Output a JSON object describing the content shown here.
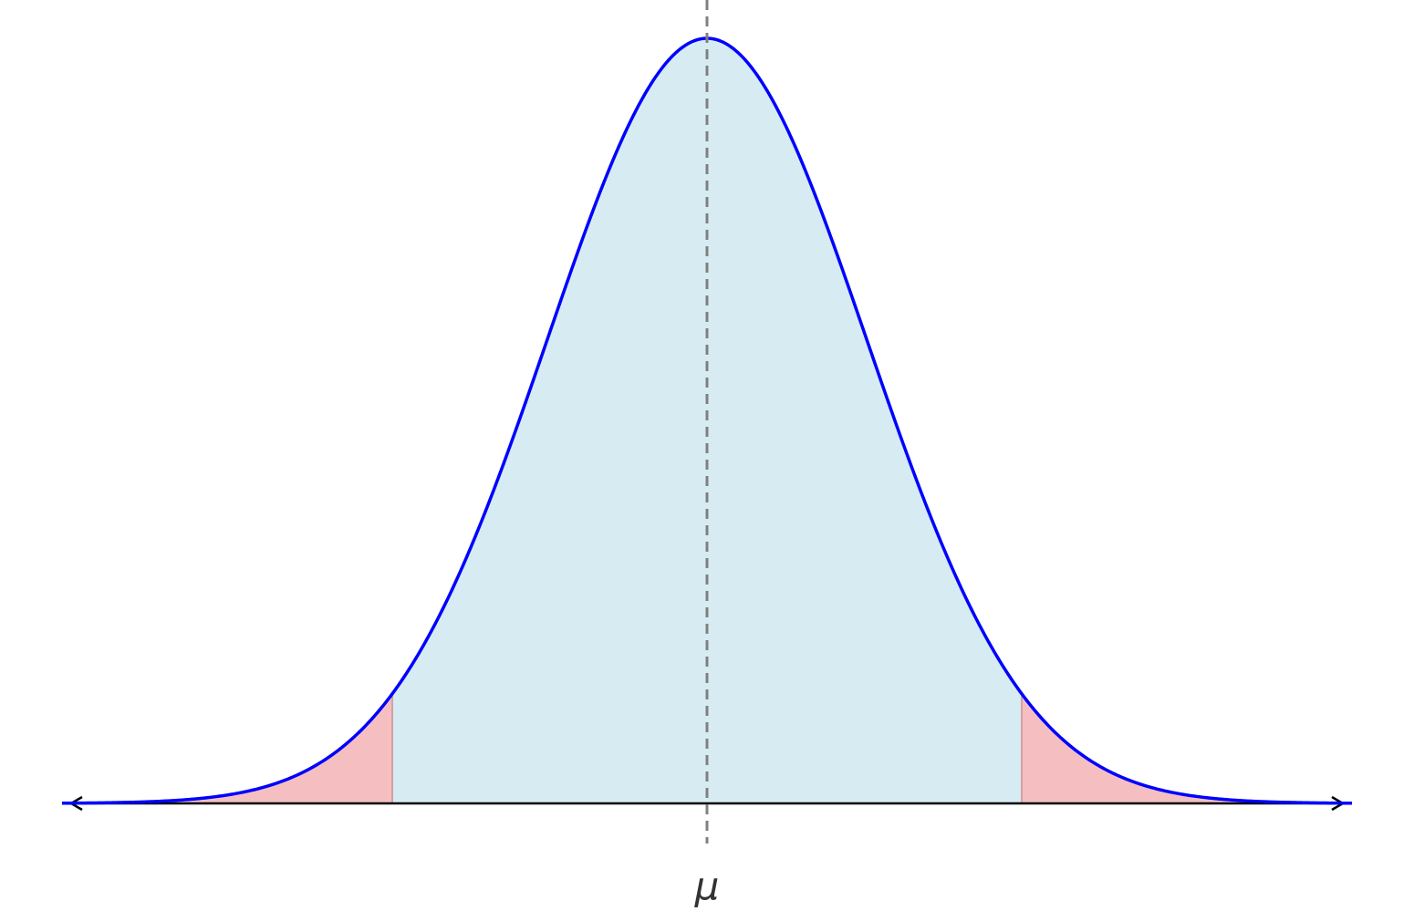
{
  "mean_label": "μ"
}
